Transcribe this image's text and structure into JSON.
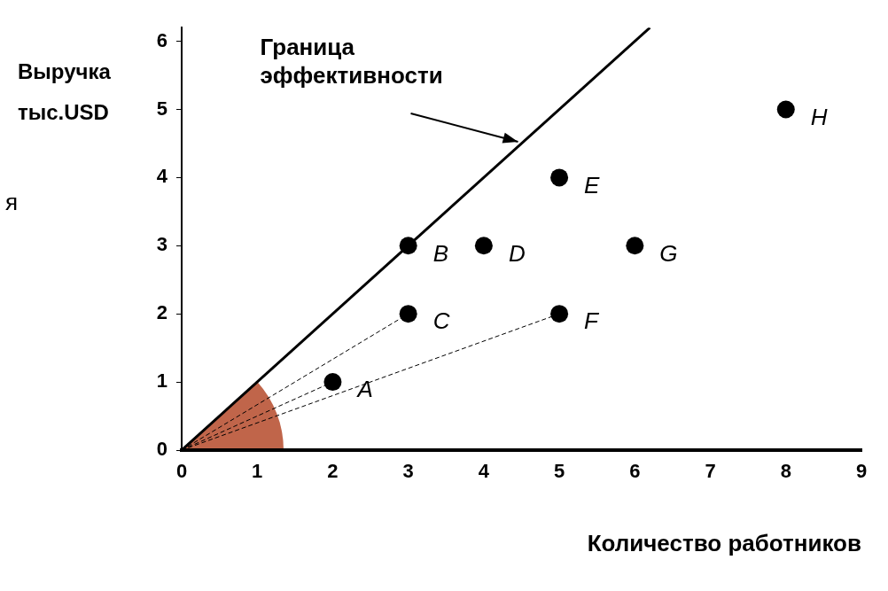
{
  "chart_data": {
    "type": "scatter",
    "xlabel": "Количество работников",
    "ylabel": "Выручка тыс.USD",
    "xlim": [
      0,
      9
    ],
    "ylim": [
      0,
      6.2
    ],
    "xticks": [
      0,
      1,
      2,
      3,
      4,
      5,
      6,
      7,
      8,
      9
    ],
    "yticks": [
      0,
      1,
      2,
      3,
      4,
      5,
      6
    ],
    "annotations": [
      {
        "text": "Граница эффективности",
        "x": 4.5,
        "y": 4.5
      },
      "я"
    ],
    "series": [
      {
        "type": "line",
        "x": [
          0,
          6.2
        ],
        "values": [
          0,
          6.2
        ],
        "color": "#000000",
        "line_style": "solid",
        "marker": "none"
      },
      {
        "type": "line",
        "x": [
          0,
          3
        ],
        "values": [
          0,
          2
        ],
        "color": "#000000",
        "line_style": "dashed",
        "marker": "none"
      },
      {
        "type": "line",
        "x": [
          0,
          5
        ],
        "values": [
          0,
          2
        ],
        "color": "#000000",
        "line_style": "dashed",
        "marker": "none"
      },
      {
        "type": "line",
        "x": [
          0,
          2
        ],
        "values": [
          0,
          1
        ],
        "color": "#000000",
        "line_style": "dashed",
        "marker": "none"
      },
      {
        "type": "scatter",
        "name": "A",
        "x": [
          2
        ],
        "values": [
          1
        ],
        "color": "#000000",
        "marker": "circle"
      },
      {
        "type": "scatter",
        "name": "B",
        "x": [
          3
        ],
        "values": [
          3
        ],
        "color": "#000000",
        "marker": "circle"
      },
      {
        "type": "scatter",
        "name": "C",
        "x": [
          3
        ],
        "values": [
          2
        ],
        "color": "#000000",
        "marker": "circle"
      },
      {
        "type": "scatter",
        "name": "D",
        "x": [
          4
        ],
        "values": [
          3
        ],
        "color": "#000000",
        "marker": "circle"
      },
      {
        "type": "scatter",
        "name": "E",
        "x": [
          5
        ],
        "values": [
          4
        ],
        "color": "#000000",
        "marker": "circle"
      },
      {
        "type": "scatter",
        "name": "F",
        "x": [
          5
        ],
        "values": [
          2
        ],
        "color": "#000000",
        "marker": "circle"
      },
      {
        "type": "scatter",
        "name": "G",
        "x": [
          6
        ],
        "values": [
          3
        ],
        "color": "#000000",
        "marker": "circle"
      },
      {
        "type": "scatter",
        "name": "H",
        "x": [
          8
        ],
        "values": [
          5
        ],
        "color": "#000000",
        "marker": "circle"
      }
    ]
  }
}
